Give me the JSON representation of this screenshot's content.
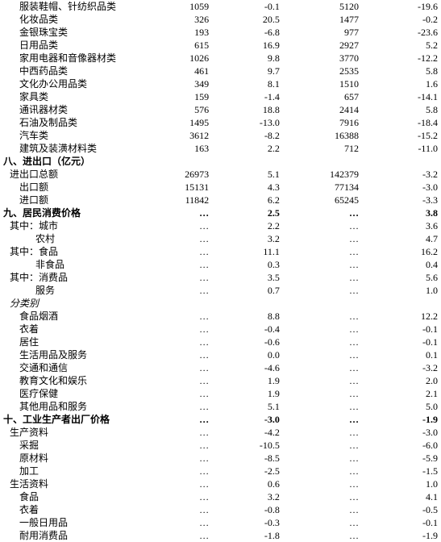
{
  "rows": [
    {
      "label": "服装鞋帽、针纺织品类",
      "indent": 2,
      "v1": "1059",
      "v2": "-0.1",
      "v3": "5120",
      "v4": "-19.6"
    },
    {
      "label": "化妆品类",
      "indent": 2,
      "v1": "326",
      "v2": "20.5",
      "v3": "1477",
      "v4": "-0.2"
    },
    {
      "label": "金银珠宝类",
      "indent": 2,
      "v1": "193",
      "v2": "-6.8",
      "v3": "977",
      "v4": "-23.6"
    },
    {
      "label": "日用品类",
      "indent": 2,
      "v1": "615",
      "v2": "16.9",
      "v3": "2927",
      "v4": "5.2"
    },
    {
      "label": "家用电器和音像器材类",
      "indent": 2,
      "v1": "1026",
      "v2": "9.8",
      "v3": "3770",
      "v4": "-12.2"
    },
    {
      "label": "中西药品类",
      "indent": 2,
      "v1": "461",
      "v2": "9.7",
      "v3": "2535",
      "v4": "5.8"
    },
    {
      "label": "文化办公用品类",
      "indent": 2,
      "v1": "349",
      "v2": "8.1",
      "v3": "1510",
      "v4": "1.6"
    },
    {
      "label": "家具类",
      "indent": 2,
      "v1": "159",
      "v2": "-1.4",
      "v3": "657",
      "v4": "-14.1"
    },
    {
      "label": "通讯器材类",
      "indent": 2,
      "v1": "576",
      "v2": "18.8",
      "v3": "2414",
      "v4": "5.8"
    },
    {
      "label": "石油及制品类",
      "indent": 2,
      "v1": "1495",
      "v2": "-13.0",
      "v3": "7916",
      "v4": "-18.4"
    },
    {
      "label": "汽车类",
      "indent": 2,
      "v1": "3612",
      "v2": "-8.2",
      "v3": "16388",
      "v4": "-15.2"
    },
    {
      "label": "建筑及装潢材料类",
      "indent": 2,
      "v1": "163",
      "v2": "2.2",
      "v3": "712",
      "v4": "-11.0"
    },
    {
      "label": "八、进出口（亿元）",
      "indent": 0,
      "bold": true,
      "v1": "",
      "v2": "",
      "v3": "",
      "v4": ""
    },
    {
      "label": "进出口总额",
      "indent": 1,
      "v1": "26973",
      "v2": "5.1",
      "v3": "142379",
      "v4": "-3.2"
    },
    {
      "label": "出口额",
      "indent": 2,
      "v1": "15131",
      "v2": "4.3",
      "v3": "77134",
      "v4": "-3.0"
    },
    {
      "label": "进口额",
      "indent": 2,
      "v1": "11842",
      "v2": "6.2",
      "v3": "65245",
      "v4": "-3.3"
    },
    {
      "label": "九、居民消费价格",
      "indent": 0,
      "bold": true,
      "v1": "…",
      "v2": "2.5",
      "v3": "…",
      "v4": "3.8"
    },
    {
      "label": "其中：城市",
      "indent": 1,
      "v1": "…",
      "v2": "2.2",
      "v3": "…",
      "v4": "3.6"
    },
    {
      "label": "农村",
      "indent": 3,
      "v1": "…",
      "v2": "3.2",
      "v3": "…",
      "v4": "4.7"
    },
    {
      "label": "其中：食品",
      "indent": 1,
      "v1": "…",
      "v2": "11.1",
      "v3": "…",
      "v4": "16.2"
    },
    {
      "label": "非食品",
      "indent": 3,
      "v1": "…",
      "v2": "0.3",
      "v3": "…",
      "v4": "0.4"
    },
    {
      "label": "其中：消费品",
      "indent": 1,
      "v1": "…",
      "v2": "3.5",
      "v3": "…",
      "v4": "5.6"
    },
    {
      "label": "服务",
      "indent": 3,
      "v1": "…",
      "v2": "0.7",
      "v3": "…",
      "v4": "1.0"
    },
    {
      "label": "分类别",
      "indent": 1,
      "italic": true,
      "v1": "",
      "v2": "",
      "v3": "",
      "v4": ""
    },
    {
      "label": "食品烟酒",
      "indent": 2,
      "v1": "…",
      "v2": "8.8",
      "v3": "…",
      "v4": "12.2"
    },
    {
      "label": "衣着",
      "indent": 2,
      "v1": "…",
      "v2": "-0.4",
      "v3": "…",
      "v4": "-0.1"
    },
    {
      "label": "居住",
      "indent": 2,
      "v1": "…",
      "v2": "-0.6",
      "v3": "…",
      "v4": "-0.1"
    },
    {
      "label": "生活用品及服务",
      "indent": 2,
      "v1": "…",
      "v2": "0.0",
      "v3": "…",
      "v4": "0.1"
    },
    {
      "label": "交通和通信",
      "indent": 2,
      "v1": "…",
      "v2": "-4.6",
      "v3": "…",
      "v4": "-3.2"
    },
    {
      "label": "教育文化和娱乐",
      "indent": 2,
      "v1": "…",
      "v2": "1.9",
      "v3": "…",
      "v4": "2.0"
    },
    {
      "label": "医疗保健",
      "indent": 2,
      "v1": "…",
      "v2": "1.9",
      "v3": "…",
      "v4": "2.1"
    },
    {
      "label": "其他用品和服务",
      "indent": 2,
      "v1": "…",
      "v2": "5.1",
      "v3": "…",
      "v4": "5.0"
    },
    {
      "label": "十、工业生产者出厂价格",
      "indent": 0,
      "bold": true,
      "v1": "…",
      "v2": "-3.0",
      "v3": "…",
      "v4": "-1.9"
    },
    {
      "label": "生产资料",
      "indent": 1,
      "v1": "…",
      "v2": "-4.2",
      "v3": "…",
      "v4": "-3.0"
    },
    {
      "label": "采掘",
      "indent": 2,
      "v1": "…",
      "v2": "-10.5",
      "v3": "…",
      "v4": "-6.0"
    },
    {
      "label": "原材料",
      "indent": 2,
      "v1": "…",
      "v2": "-8.5",
      "v3": "…",
      "v4": "-5.9"
    },
    {
      "label": "加工",
      "indent": 2,
      "v1": "…",
      "v2": "-2.5",
      "v3": "…",
      "v4": "-1.5"
    },
    {
      "label": "生活资料",
      "indent": 1,
      "v1": "…",
      "v2": "0.6",
      "v3": "…",
      "v4": "1.0"
    },
    {
      "label": "食品",
      "indent": 2,
      "v1": "…",
      "v2": "3.2",
      "v3": "…",
      "v4": "4.1"
    },
    {
      "label": "衣着",
      "indent": 2,
      "v1": "…",
      "v2": "-0.8",
      "v3": "…",
      "v4": "-0.5"
    },
    {
      "label": "一般日用品",
      "indent": 2,
      "v1": "…",
      "v2": "-0.3",
      "v3": "…",
      "v4": "-0.1"
    },
    {
      "label": "耐用消费品",
      "indent": 2,
      "v1": "…",
      "v2": "-1.8",
      "v3": "…",
      "v4": "-1.9"
    }
  ]
}
